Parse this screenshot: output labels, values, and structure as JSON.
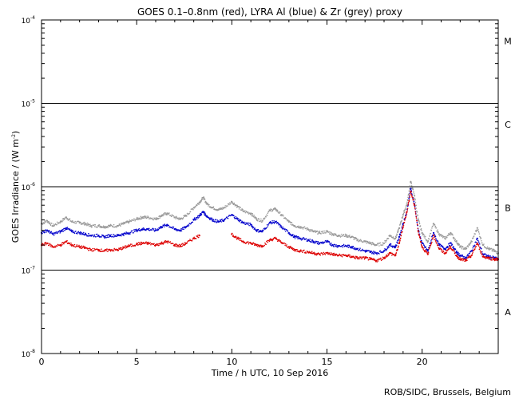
{
  "chart_data": {
    "type": "scatter",
    "title": "GOES 0.1–0.8nm (red), LYRA Al (blue) & Zr (grey) proxy",
    "xlabel": "Time / h UTC, 10 Sep 2016",
    "ylabel": "GOES Irradiance / (W m",
    "ylabel_exp": "-2",
    "ylabel_close": ")",
    "credit": "ROB/SIDC, Brussels, Belgium",
    "xlim": [
      0,
      24
    ],
    "ylim": [
      1e-08,
      0.0001
    ],
    "yscale": "log",
    "x_ticks": [
      {
        "value": 0,
        "label": "0"
      },
      {
        "value": 5,
        "label": "5"
      },
      {
        "value": 10,
        "label": "10"
      },
      {
        "value": 15,
        "label": "15"
      },
      {
        "value": 20,
        "label": "20"
      }
    ],
    "y_ticks": [
      {
        "value": 1e-08,
        "base": "10",
        "exp": "-8"
      },
      {
        "value": 1e-07,
        "base": "10",
        "exp": "-7"
      },
      {
        "value": 1e-06,
        "base": "10",
        "exp": "-6"
      },
      {
        "value": 1e-05,
        "base": "10",
        "exp": "-5"
      },
      {
        "value": 0.0001,
        "base": "10",
        "exp": "-4"
      }
    ],
    "class_lines": [
      1e-07,
      1e-06,
      1e-05
    ],
    "class_labels": [
      {
        "label": "A",
        "value": 3.16e-08
      },
      {
        "label": "B",
        "value": 5.6e-07
      },
      {
        "label": "C",
        "value": 5.6e-06
      },
      {
        "label": "M",
        "value": 5.6e-05
      }
    ],
    "series": [
      {
        "color": "#999999",
        "x": [
          0,
          0.3,
          0.6,
          1.0,
          1.3,
          1.6,
          2.0,
          2.3,
          2.6,
          3.0,
          3.3,
          3.6,
          4.0,
          4.3,
          4.6,
          5.0,
          5.3,
          5.6,
          6.0,
          6.3,
          6.6,
          7.0,
          7.3,
          7.6,
          8.0,
          8.3,
          8.5,
          8.7,
          9.0,
          9.3,
          9.6,
          10.0,
          10.3,
          10.6,
          11.0,
          11.3,
          11.6,
          12.0,
          12.3,
          12.6,
          13.0,
          13.3,
          13.6,
          14.0,
          14.3,
          14.6,
          15.0,
          15.3,
          15.6,
          16.0,
          16.3,
          16.6,
          17.0,
          17.3,
          17.6,
          18.0,
          18.3,
          18.6,
          18.8,
          19.0,
          19.2,
          19.4,
          19.6,
          19.8,
          20.0,
          20.3,
          20.6,
          20.9,
          21.2,
          21.5,
          21.8,
          22.0,
          22.3,
          22.6,
          22.9,
          23.2,
          23.5,
          23.8,
          24.0
        ],
        "y": [
          3.6e-07,
          3.9e-07,
          3.4e-07,
          3.8e-07,
          4.3e-07,
          3.8e-07,
          3.7e-07,
          3.6e-07,
          3.4e-07,
          3.4e-07,
          3.3e-07,
          3.4e-07,
          3.4e-07,
          3.6e-07,
          3.8e-07,
          4.1e-07,
          4.3e-07,
          4.3e-07,
          4.1e-07,
          4.5e-07,
          4.8e-07,
          4.3e-07,
          4.1e-07,
          4.5e-07,
          5.6e-07,
          6.5e-07,
          7.4e-07,
          6.2e-07,
          5.6e-07,
          5.3e-07,
          5.6e-07,
          6.6e-07,
          5.8e-07,
          5.1e-07,
          4.8e-07,
          4.1e-07,
          3.9e-07,
          5.2e-07,
          5.4e-07,
          4.6e-07,
          3.8e-07,
          3.4e-07,
          3.3e-07,
          3.1e-07,
          2.9e-07,
          2.8e-07,
          2.9e-07,
          2.7e-07,
          2.6e-07,
          2.6e-07,
          2.5e-07,
          2.3e-07,
          2.2e-07,
          2.1e-07,
          2e-07,
          2.1e-07,
          2.6e-07,
          2.4e-07,
          3.2e-07,
          4.6e-07,
          6.2e-07,
          1.15e-06,
          7.8e-07,
          4e-07,
          2.8e-07,
          2.2e-07,
          3.6e-07,
          2.7e-07,
          2.4e-07,
          2.8e-07,
          2.2e-07,
          1.9e-07,
          1.8e-07,
          2.2e-07,
          3.2e-07,
          2e-07,
          1.8e-07,
          1.7e-07,
          1.6e-07
        ]
      },
      {
        "color": "#0000cc",
        "x": [
          0,
          0.3,
          0.6,
          1.0,
          1.3,
          1.6,
          2.0,
          2.3,
          2.6,
          3.0,
          3.3,
          3.6,
          4.0,
          4.3,
          4.6,
          5.0,
          5.3,
          5.6,
          6.0,
          6.3,
          6.6,
          7.0,
          7.3,
          7.6,
          8.0,
          8.3,
          8.5,
          8.7,
          9.0,
          9.3,
          9.6,
          10.0,
          10.3,
          10.6,
          11.0,
          11.3,
          11.6,
          12.0,
          12.3,
          12.6,
          13.0,
          13.3,
          13.6,
          14.0,
          14.3,
          14.6,
          15.0,
          15.3,
          15.6,
          16.0,
          16.3,
          16.6,
          17.0,
          17.3,
          17.6,
          18.0,
          18.3,
          18.6,
          18.8,
          19.0,
          19.2,
          19.4,
          19.6,
          19.8,
          20.0,
          20.3,
          20.6,
          20.9,
          21.2,
          21.5,
          21.8,
          22.0,
          22.3,
          22.6,
          22.9,
          23.2,
          23.5,
          23.8,
          24.0
        ],
        "y": [
          2.8e-07,
          3e-07,
          2.7e-07,
          2.9e-07,
          3.2e-07,
          2.9e-07,
          2.8e-07,
          2.7e-07,
          2.6e-07,
          2.6e-07,
          2.5e-07,
          2.6e-07,
          2.6e-07,
          2.7e-07,
          2.8e-07,
          3e-07,
          3.1e-07,
          3.1e-07,
          3e-07,
          3.3e-07,
          3.5e-07,
          3.1e-07,
          3e-07,
          3.3e-07,
          4e-07,
          4.5e-07,
          5e-07,
          4.4e-07,
          4e-07,
          3.8e-07,
          4e-07,
          4.6e-07,
          4.1e-07,
          3.7e-07,
          3.5e-07,
          3e-07,
          2.9e-07,
          3.7e-07,
          3.8e-07,
          3.3e-07,
          2.8e-07,
          2.5e-07,
          2.4e-07,
          2.3e-07,
          2.2e-07,
          2.1e-07,
          2.2e-07,
          2e-07,
          1.95e-07,
          1.95e-07,
          1.9e-07,
          1.8e-07,
          1.7e-07,
          1.65e-07,
          1.6e-07,
          1.7e-07,
          2e-07,
          1.9e-07,
          2.5e-07,
          3.6e-07,
          5e-07,
          9.5e-07,
          6.2e-07,
          3e-07,
          2.1e-07,
          1.7e-07,
          2.8e-07,
          2e-07,
          1.8e-07,
          2.1e-07,
          1.65e-07,
          1.5e-07,
          1.4e-07,
          1.7e-07,
          2.4e-07,
          1.55e-07,
          1.45e-07,
          1.4e-07,
          1.35e-07
        ]
      },
      {
        "color": "#dd0000",
        "x": [
          0,
          0.3,
          0.6,
          1.0,
          1.3,
          1.6,
          2.0,
          2.3,
          2.6,
          3.0,
          3.3,
          3.6,
          4.0,
          4.3,
          4.6,
          5.0,
          5.3,
          5.6,
          6.0,
          6.3,
          6.6,
          7.0,
          7.3,
          7.6,
          8.0,
          8.3,
          10.0,
          10.3,
          10.6,
          11.0,
          11.3,
          11.6,
          12.0,
          12.3,
          12.6,
          13.0,
          13.3,
          13.6,
          14.0,
          14.3,
          14.6,
          15.0,
          15.3,
          15.6,
          16.0,
          16.3,
          16.6,
          17.0,
          17.3,
          17.6,
          18.0,
          18.3,
          18.6,
          18.8,
          19.0,
          19.2,
          19.4,
          19.6,
          19.8,
          20.0,
          20.3,
          20.6,
          20.9,
          21.2,
          21.5,
          21.8,
          22.0,
          22.3,
          22.6,
          22.9,
          23.2,
          23.5,
          23.8,
          24.0
        ],
        "y": [
          2e-07,
          2.1e-07,
          1.9e-07,
          2e-07,
          2.2e-07,
          2e-07,
          1.9e-07,
          1.85e-07,
          1.75e-07,
          1.75e-07,
          1.7e-07,
          1.75e-07,
          1.75e-07,
          1.85e-07,
          1.95e-07,
          2.05e-07,
          2.1e-07,
          2.1e-07,
          2e-07,
          2.1e-07,
          2.2e-07,
          2e-07,
          1.95e-07,
          2.1e-07,
          2.4e-07,
          2.6e-07,
          2.7e-07,
          2.4e-07,
          2.2e-07,
          2.1e-07,
          2e-07,
          1.95e-07,
          2.3e-07,
          2.4e-07,
          2.15e-07,
          1.9e-07,
          1.75e-07,
          1.7e-07,
          1.65e-07,
          1.6e-07,
          1.55e-07,
          1.6e-07,
          1.55e-07,
          1.5e-07,
          1.5e-07,
          1.45e-07,
          1.4e-07,
          1.4e-07,
          1.35e-07,
          1.3e-07,
          1.4e-07,
          1.6e-07,
          1.5e-07,
          2.1e-07,
          3.3e-07,
          5e-07,
          8.8e-07,
          6e-07,
          2.9e-07,
          1.9e-07,
          1.55e-07,
          2.6e-07,
          1.8e-07,
          1.6e-07,
          1.9e-07,
          1.5e-07,
          1.35e-07,
          1.3e-07,
          1.5e-07,
          2.1e-07,
          1.45e-07,
          1.4e-07,
          1.35e-07,
          1.35e-07
        ]
      }
    ]
  }
}
